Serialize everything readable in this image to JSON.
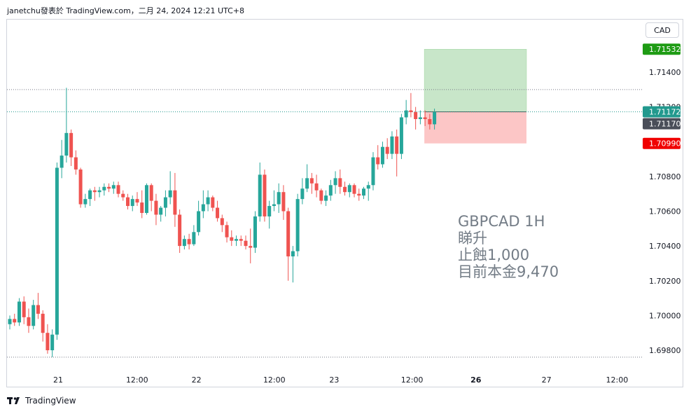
{
  "header": {
    "text": "janetchu發表於 TradingView.com，二月 24, 2024 12:21 UTC+8"
  },
  "currency_button": "CAD",
  "annotation": {
    "line1": "GBPCAD 1H",
    "line2": "睇升",
    "line3": "止蝕1,000",
    "line4": "目前本金9,470"
  },
  "footer": {
    "logo_text": "TradingView"
  },
  "colors": {
    "up": "#26a69a",
    "down": "#ef5350",
    "target_zone": "#c8e6c9",
    "stop_zone": "#fcc6c6",
    "target_tag": "#1e9b14",
    "stop_tag": "#f00000",
    "last_price_tag": "#22998e",
    "current_tag": "#4a4e59"
  },
  "chart_data": {
    "type": "candlestick",
    "symbol": "GBPCAD",
    "interval": "1H",
    "y_axis": {
      "ylim": [
        1.6975,
        1.716
      ],
      "ticks": [
        "1.71400",
        "1.71200",
        "1.70800",
        "1.70600",
        "1.70400",
        "1.70200",
        "1.70000",
        "1.69800"
      ],
      "tick_values": [
        1.714,
        1.712,
        1.708,
        1.706,
        1.704,
        1.702,
        1.7,
        1.698
      ]
    },
    "x_axis": {
      "labels": [
        "21",
        "12:00",
        "22",
        "12:00",
        "23",
        "12:00",
        "26",
        "27",
        "12:00"
      ],
      "label_positions": [
        0.105,
        0.246,
        0.352,
        0.491,
        0.598,
        0.737,
        0.851,
        0.977,
        1.103
      ]
    },
    "price_tags": [
      {
        "label": "1.71532",
        "value": 1.71532,
        "kind": "target"
      },
      {
        "label": "1.71172",
        "value": 1.71172,
        "kind": "last"
      },
      {
        "label": "1.71170",
        "value": 1.7117,
        "kind": "current"
      },
      {
        "label": "1.70990",
        "value": 1.7099,
        "kind": "stop"
      }
    ],
    "reference_lines": [
      {
        "value": 1.713,
        "style": "dotted"
      },
      {
        "value": 1.6976,
        "style": "dotted"
      },
      {
        "value": 1.71172,
        "style": "dotted-teal"
      }
    ],
    "position": {
      "entry": 1.71172,
      "target": 1.71532,
      "stop": 1.7099,
      "start_index": 88,
      "end_index": 106
    },
    "candles": [
      [
        1.6995,
        1.7,
        1.6992,
        1.6998
      ],
      [
        1.6998,
        1.7001,
        1.6994,
        1.6996
      ],
      [
        1.6996,
        1.701,
        1.6994,
        1.7008
      ],
      [
        1.7008,
        1.7011,
        1.6995,
        1.6999
      ],
      [
        1.6999,
        1.7004,
        1.699,
        1.6994
      ],
      [
        1.6994,
        1.7009,
        1.6992,
        1.7006
      ],
      [
        1.7006,
        1.7013,
        1.6998,
        1.7001
      ],
      [
        1.7001,
        1.7003,
        1.6985,
        1.699
      ],
      [
        1.699,
        1.6995,
        1.6978,
        1.698
      ],
      [
        1.698,
        1.6992,
        1.6976,
        1.6989
      ],
      [
        1.6989,
        1.7088,
        1.6986,
        1.7085
      ],
      [
        1.7085,
        1.7101,
        1.7079,
        1.7092
      ],
      [
        1.7092,
        1.7131,
        1.7088,
        1.7105
      ],
      [
        1.7105,
        1.7107,
        1.7086,
        1.7091
      ],
      [
        1.7091,
        1.7095,
        1.7081,
        1.7084
      ],
      [
        1.7084,
        1.7085,
        1.7062,
        1.7064
      ],
      [
        1.7064,
        1.707,
        1.7062,
        1.7067
      ],
      [
        1.7067,
        1.7073,
        1.7063,
        1.7072
      ],
      [
        1.7072,
        1.7074,
        1.7066,
        1.7071
      ],
      [
        1.7071,
        1.7074,
        1.7068,
        1.7072
      ],
      [
        1.7072,
        1.7076,
        1.7069,
        1.7074
      ],
      [
        1.7074,
        1.7076,
        1.7071,
        1.7073
      ],
      [
        1.7073,
        1.7077,
        1.707,
        1.7075
      ],
      [
        1.7075,
        1.7077,
        1.7068,
        1.707
      ],
      [
        1.707,
        1.7072,
        1.7066,
        1.7068
      ],
      [
        1.7068,
        1.707,
        1.7061,
        1.7063
      ],
      [
        1.7063,
        1.7069,
        1.706,
        1.7067
      ],
      [
        1.7067,
        1.7071,
        1.7063,
        1.7065
      ],
      [
        1.7065,
        1.7072,
        1.7056,
        1.7059
      ],
      [
        1.7059,
        1.7076,
        1.7058,
        1.7075
      ],
      [
        1.7075,
        1.7076,
        1.706,
        1.7066
      ],
      [
        1.7066,
        1.707,
        1.7052,
        1.7058
      ],
      [
        1.7058,
        1.7063,
        1.7054,
        1.7062
      ],
      [
        1.7062,
        1.7072,
        1.7057,
        1.7068
      ],
      [
        1.7068,
        1.7083,
        1.7064,
        1.7072
      ],
      [
        1.7072,
        1.7082,
        1.7051,
        1.7058
      ],
      [
        1.7058,
        1.7061,
        1.7036,
        1.704
      ],
      [
        1.704,
        1.7046,
        1.7038,
        1.7044
      ],
      [
        1.7044,
        1.7047,
        1.7038,
        1.7041
      ],
      [
        1.7041,
        1.7052,
        1.704,
        1.7048
      ],
      [
        1.7048,
        1.7066,
        1.7046,
        1.706
      ],
      [
        1.706,
        1.7072,
        1.7056,
        1.7064
      ],
      [
        1.7064,
        1.7072,
        1.706,
        1.7068
      ],
      [
        1.7068,
        1.7069,
        1.706,
        1.7062
      ],
      [
        1.7062,
        1.7066,
        1.7054,
        1.7056
      ],
      [
        1.7056,
        1.7058,
        1.7048,
        1.7052
      ],
      [
        1.7052,
        1.7054,
        1.7042,
        1.7045
      ],
      [
        1.7045,
        1.7049,
        1.704,
        1.7043
      ],
      [
        1.7043,
        1.7046,
        1.704,
        1.7044
      ],
      [
        1.7044,
        1.7046,
        1.704,
        1.7043
      ],
      [
        1.7043,
        1.7046,
        1.7038,
        1.704
      ],
      [
        1.704,
        1.705,
        1.703,
        1.7039
      ],
      [
        1.7039,
        1.706,
        1.7036,
        1.7057
      ],
      [
        1.7057,
        1.7088,
        1.7054,
        1.7081
      ],
      [
        1.7081,
        1.7084,
        1.7054,
        1.7057
      ],
      [
        1.7057,
        1.7066,
        1.705,
        1.7063
      ],
      [
        1.7063,
        1.7072,
        1.706,
        1.7064
      ],
      [
        1.7064,
        1.7076,
        1.7059,
        1.7071
      ],
      [
        1.7071,
        1.7075,
        1.7055,
        1.706
      ],
      [
        1.706,
        1.7062,
        1.702,
        1.7034
      ],
      [
        1.7034,
        1.704,
        1.7019,
        1.7037
      ],
      [
        1.7037,
        1.707,
        1.7034,
        1.7067
      ],
      [
        1.7067,
        1.7079,
        1.7064,
        1.7073
      ],
      [
        1.7073,
        1.7087,
        1.7071,
        1.7079
      ],
      [
        1.7079,
        1.7082,
        1.707,
        1.7076
      ],
      [
        1.7076,
        1.7081,
        1.7068,
        1.7072
      ],
      [
        1.7072,
        1.7073,
        1.7064,
        1.7066
      ],
      [
        1.7066,
        1.7072,
        1.7063,
        1.7069
      ],
      [
        1.7069,
        1.7078,
        1.7066,
        1.7075
      ],
      [
        1.7075,
        1.7083,
        1.707,
        1.7079
      ],
      [
        1.7079,
        1.7084,
        1.707,
        1.7074
      ],
      [
        1.7074,
        1.7077,
        1.7069,
        1.7071
      ],
      [
        1.7071,
        1.7076,
        1.7068,
        1.7075
      ],
      [
        1.7075,
        1.7076,
        1.7068,
        1.707
      ],
      [
        1.707,
        1.7073,
        1.7066,
        1.7069
      ],
      [
        1.7069,
        1.7074,
        1.7067,
        1.7073
      ],
      [
        1.7073,
        1.7077,
        1.7066,
        1.7075
      ],
      [
        1.7075,
        1.7094,
        1.7072,
        1.7091
      ],
      [
        1.7091,
        1.7098,
        1.7084,
        1.7087
      ],
      [
        1.7087,
        1.71,
        1.7085,
        1.7097
      ],
      [
        1.7097,
        1.7102,
        1.709,
        1.7093
      ],
      [
        1.7093,
        1.7106,
        1.709,
        1.7103
      ],
      [
        1.7103,
        1.7107,
        1.708,
        1.7093
      ],
      [
        1.7093,
        1.7116,
        1.709,
        1.7114
      ],
      [
        1.7114,
        1.7124,
        1.711,
        1.7118
      ],
      [
        1.7118,
        1.7128,
        1.7114,
        1.7117
      ],
      [
        1.7117,
        1.712,
        1.7107,
        1.7113
      ],
      [
        1.7113,
        1.7118,
        1.711,
        1.7114
      ],
      [
        1.7114,
        1.7118,
        1.7109,
        1.7113
      ],
      [
        1.7113,
        1.7116,
        1.7107,
        1.711
      ],
      [
        1.711,
        1.7119,
        1.7107,
        1.7117
      ]
    ]
  }
}
